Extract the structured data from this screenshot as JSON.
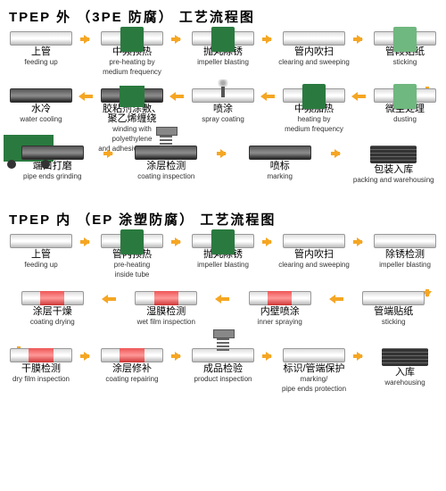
{
  "arrow_color": "#f5a623",
  "section1": {
    "title": "TPEP 外 （3PE 防腐） 工艺流程图",
    "r1": [
      {
        "cn": "上管",
        "en": "feeding up",
        "t": "pipe"
      },
      {
        "cn": "中频预热",
        "en": "pre-heating by\nmedium frequency",
        "t": "pipe box"
      },
      {
        "cn": "抛丸除锈",
        "en": "impeller blasting",
        "t": "pipe box"
      },
      {
        "cn": "管内吹扫",
        "en": "clearing and sweeping",
        "t": "pipe"
      },
      {
        "cn": "管段贴纸",
        "en": "sticking",
        "t": "pipe box lt"
      }
    ],
    "r2": [
      {
        "cn": "水冷",
        "en": "water cooling",
        "t": "dark"
      },
      {
        "cn": "胶粘剂涂敷、\n聚乙烯缠绕",
        "en": "winding with polyethylene\nand adhesive coating",
        "t": "dark box2"
      },
      {
        "cn": "喷涂",
        "en": "spray coating",
        "t": "pipe spray"
      },
      {
        "cn": "中频加热",
        "en": "heating by\nmedium frequency",
        "t": "pipe box"
      },
      {
        "cn": "微尘处理",
        "en": "dusting",
        "t": "pipe box lt"
      }
    ],
    "r3": [
      {
        "cn": "端口打磨",
        "en": "pipe ends grinding",
        "t": "maint dark"
      },
      {
        "cn": "涂层检测",
        "en": "coating inspection",
        "t": "dark spring"
      },
      {
        "cn": "喷标",
        "en": "marking",
        "t": "dark"
      },
      {
        "cn": "包装入库",
        "en": "packing and warehousing",
        "t": "stack"
      }
    ]
  },
  "section2": {
    "title": "TPEP 内 （EP 涂塑防腐） 工艺流程图",
    "r1": [
      {
        "cn": "上管",
        "en": "feeding up",
        "t": "pipe"
      },
      {
        "cn": "管内预热",
        "en": "pre-heating\ninside tube",
        "t": "pipe box"
      },
      {
        "cn": "抛丸除锈",
        "en": "impeller blasting",
        "t": "pipe box"
      },
      {
        "cn": "管内吹扫",
        "en": "clearing and sweeping",
        "t": "pipe"
      },
      {
        "cn": "除锈检测",
        "en": "impeller blasting",
        "t": "pipe"
      }
    ],
    "r2": [
      {
        "cn": "涂层干燥",
        "en": "coating drying",
        "t": "pipe red"
      },
      {
        "cn": "湿膜检测",
        "en": "wet film inspection",
        "t": "pipe red"
      },
      {
        "cn": "内壁喷涂",
        "en": "inner spraying",
        "t": "pipe red"
      },
      {
        "cn": "管端贴纸",
        "en": "sticking",
        "t": "pipe"
      }
    ],
    "r3": [
      {
        "cn": "干膜检测",
        "en": "dry film inspection",
        "t": "pipe red"
      },
      {
        "cn": "涂层修补",
        "en": "coating repairing",
        "t": "pipe red"
      },
      {
        "cn": "成品检验",
        "en": "product inspection",
        "t": "pipe spring"
      },
      {
        "cn": "标识/管端保护",
        "en": "marking/\npipe ends protection",
        "t": "pipe"
      },
      {
        "cn": "入库",
        "en": "warehousing",
        "t": "stack"
      }
    ]
  }
}
